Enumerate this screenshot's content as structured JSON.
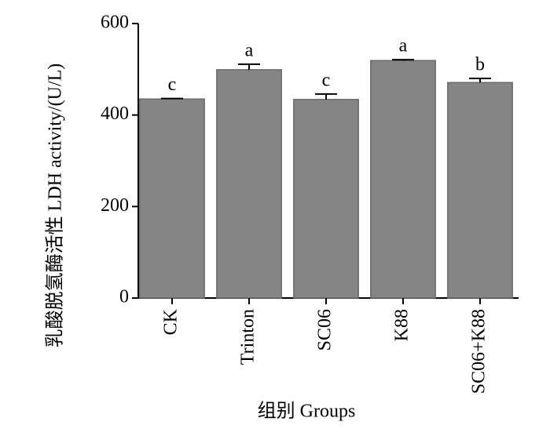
{
  "chart_data": {
    "type": "bar",
    "y_label": "乳酸脱氢酶活性  LDH activity/(U/L)",
    "x_label": "组别 Groups",
    "categories": [
      "CK",
      "Trinton",
      "SC06",
      "K88",
      "SC06+K88"
    ],
    "values": [
      435,
      499,
      434,
      519,
      471
    ],
    "errors": [
      1,
      12,
      12,
      2,
      9
    ],
    "significance_labels": [
      "c",
      "a",
      "c",
      "a",
      "b"
    ],
    "color": "#858585",
    "ylim": [
      0,
      600
    ],
    "yticks": [
      0,
      200,
      400,
      600
    ],
    "grid": false
  }
}
